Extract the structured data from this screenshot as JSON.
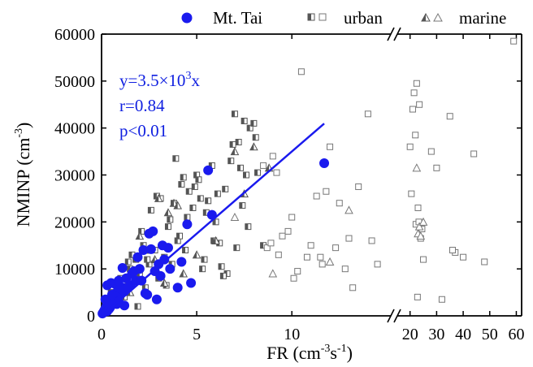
{
  "chart_data": {
    "type": "scatter",
    "xlabel_main": "FR (cm",
    "xlabel_sup": "-3",
    "xlabel_tail": "s",
    "xlabel_sup2": "-1",
    "xlabel_end": ")",
    "ylabel_main": "NMINP (cm",
    "ylabel_sup": "-3",
    "ylabel_end": ")",
    "ylim": [
      0,
      60000
    ],
    "yticks": [
      0,
      10000,
      20000,
      30000,
      40000,
      50000,
      60000
    ],
    "ytick_labels": [
      "0",
      "10000",
      "20000",
      "30000",
      "40000",
      "50000",
      "60000"
    ],
    "x_segments": [
      {
        "xlim": [
          0,
          15.2
        ],
        "ticks": [
          0,
          5,
          10
        ],
        "tick_labels": [
          "0",
          "5",
          "10"
        ]
      },
      {
        "xlim": [
          15.2,
          62
        ],
        "ticks": [
          20,
          30,
          40,
          50,
          60
        ],
        "tick_labels": [
          "20",
          "30",
          "40",
          "50",
          "60"
        ]
      }
    ],
    "legend": {
      "placement": "top",
      "entries": [
        "Mt. Tai",
        "urban",
        "marine"
      ]
    },
    "annotation": {
      "line1_a": "y=3.5×10",
      "line1_sup": "3",
      "line1_b": "x",
      "line2": "r=0.84",
      "line3": "p<0.01"
    },
    "fit": {
      "slope": 3500,
      "x_range": [
        0,
        11.7
      ]
    },
    "colors": {
      "mttai": "#1a1aee",
      "fit": "#1a1aee",
      "urban_open": "#777777",
      "urban_half": "#555555",
      "marine": "#555555",
      "annot": "#1020e0"
    },
    "series": [
      {
        "name": "Mt. Tai",
        "marker": "filled-circle",
        "x": [
          0.05,
          0.1,
          0.15,
          0.2,
          0.25,
          0.3,
          0.35,
          0.4,
          0.45,
          0.5,
          0.55,
          0.6,
          0.65,
          0.7,
          0.75,
          0.8,
          0.9,
          1.0,
          1.1,
          1.2,
          0.3,
          0.5,
          0.7,
          0.9,
          1.1,
          0.4,
          0.6,
          0.8,
          1.0,
          1.3,
          1.5,
          1.6,
          1.8,
          2.0,
          2.2,
          2.5,
          2.7,
          2.8,
          3.0,
          3.2,
          3.3,
          3.5,
          1.4,
          2.1,
          2.4,
          2.9,
          3.1,
          4.0,
          4.2,
          4.5,
          4.7,
          5.8,
          5.6,
          1.2,
          0.9,
          1.7,
          2.3,
          2.6,
          11.7,
          0.2,
          0.35,
          0.55,
          1.9,
          3.6
        ],
        "y": [
          500,
          800,
          1200,
          1500,
          2000,
          1000,
          2500,
          3000,
          1800,
          2200,
          3500,
          4000,
          2800,
          4500,
          3200,
          5000,
          5500,
          4800,
          6000,
          5200,
          6500,
          7000,
          6800,
          7500,
          10200,
          1500,
          3800,
          2500,
          5800,
          8000,
          6500,
          9000,
          7500,
          10000,
          14000,
          17500,
          18000,
          9500,
          11000,
          15000,
          12000,
          14500,
          6000,
          7500,
          4500,
          3500,
          8500,
          6000,
          11500,
          19500,
          7000,
          21500,
          31000,
          2200,
          3000,
          9500,
          4800,
          14200,
          32500,
          3500,
          2800,
          4500,
          12500,
          10000
        ]
      },
      {
        "name": "urban",
        "marker": "half-square",
        "x": [
          0.3,
          0.5,
          0.8,
          1.0,
          1.2,
          1.5,
          1.8,
          2.0,
          2.2,
          2.5,
          2.8,
          3.0,
          3.3,
          3.5,
          3.8,
          4.0,
          4.2,
          4.5,
          4.8,
          5.0,
          5.2,
          5.5,
          5.8,
          6.0,
          6.2,
          6.5,
          6.8,
          7.0,
          7.2,
          7.5,
          7.8,
          8.0,
          8.2,
          0.6,
          1.1,
          1.6,
          2.1,
          2.6,
          3.1,
          3.6,
          4.1,
          4.6,
          5.1,
          5.6,
          6.1,
          6.6,
          7.1,
          7.6,
          8.1,
          8.5,
          3.7,
          4.4,
          4.9,
          5.3,
          5.9,
          6.4,
          6.9,
          7.3,
          7.7,
          2.3,
          2.9,
          3.4,
          3.9,
          4.3,
          1.4,
          1.9,
          2.4,
          5.4,
          6.3,
          7.4
        ],
        "y": [
          3000,
          5000,
          6000,
          8000,
          4000,
          10000,
          12000,
          9000,
          15000,
          11000,
          14000,
          8000,
          12500,
          19000,
          24000,
          16000,
          28000,
          21000,
          23000,
          30000,
          25000,
          22000,
          32000,
          20000,
          15500,
          27000,
          33000,
          43000,
          37000,
          41500,
          40000,
          41000,
          30500,
          4500,
          7000,
          13000,
          18000,
          22500,
          25000,
          20500,
          17000,
          26500,
          29000,
          24500,
          26000,
          9000,
          14500,
          30000,
          38000,
          15000,
          11000,
          14000,
          27500,
          10000,
          16000,
          8500,
          36500,
          31500,
          19000,
          6000,
          25500,
          6500,
          33500,
          29500,
          11500,
          2000,
          12000,
          12000,
          10500,
          23500
        ]
      },
      {
        "name": "urban",
        "marker": "open-square",
        "x": [
          8.5,
          9.0,
          9.5,
          10.0,
          10.5,
          11.0,
          11.5,
          12.0,
          12.5,
          13.0,
          13.5,
          14.0,
          14.5,
          9.2,
          9.8,
          10.3,
          10.8,
          11.3,
          11.8,
          12.3,
          8.7,
          9.3,
          10.1,
          11.6,
          12.8,
          13.2,
          14.2,
          8.9,
          20.0,
          20.5,
          21.0,
          21.5,
          22.0,
          22.5,
          23.0,
          23.5,
          24.0,
          25.0,
          28.0,
          30.0,
          32.0,
          35.0,
          37.0,
          40.0,
          44.0,
          48.0,
          59.0,
          22.2,
          22.8,
          23.3,
          24.5,
          36.0
        ],
        "y": [
          32000,
          34000,
          17000,
          21000,
          52000,
          15000,
          12500,
          36000,
          24000,
          16500,
          27500,
          43000,
          11000,
          30500,
          18000,
          9500,
          12500,
          25500,
          26500,
          14500,
          14500,
          13000,
          8000,
          11000,
          10000,
          6000,
          16000,
          15500,
          36000,
          26000,
          44000,
          47500,
          38500,
          49500,
          23000,
          45000,
          16500,
          12000,
          35000,
          31500,
          3500,
          42500,
          13500,
          12500,
          34500,
          11500,
          58500,
          19500,
          4000,
          20000,
          18500,
          14000
        ]
      },
      {
        "name": "marine",
        "marker": "half-triangle",
        "x": [
          1.5,
          2.0,
          2.5,
          3.0,
          3.3,
          3.8,
          4.0,
          4.3,
          2.8,
          5.0,
          6.0,
          7.0,
          7.5,
          8.0,
          8.8,
          3.5
        ],
        "y": [
          5000,
          17000,
          14000,
          25000,
          7000,
          24000,
          23500,
          9000,
          12000,
          13000,
          16000,
          35000,
          26000,
          36000,
          31500,
          22000
        ]
      },
      {
        "name": "marine",
        "marker": "open-triangle",
        "x": [
          7.0,
          9.0,
          12.0,
          13.0,
          22.5,
          23.0,
          23.5,
          24.0,
          25.0
        ],
        "y": [
          21000,
          9000,
          11500,
          22500,
          31500,
          17500,
          19000,
          17000,
          20000
        ]
      }
    ]
  }
}
